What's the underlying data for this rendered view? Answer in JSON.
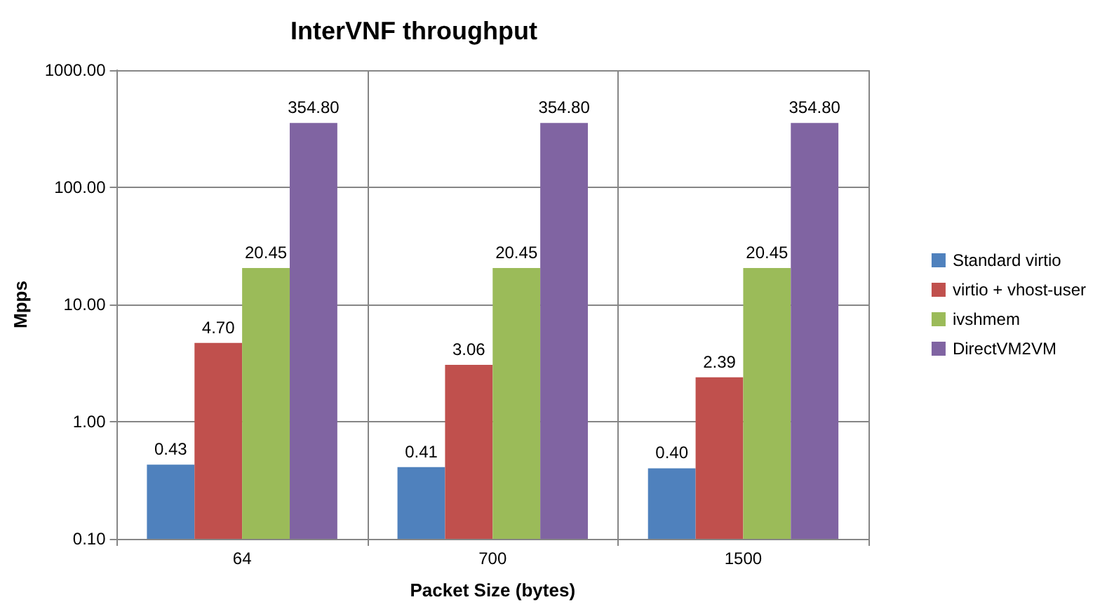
{
  "chart_data": {
    "type": "bar",
    "title": "InterVNF throughput",
    "xlabel": "Packet Size (bytes)",
    "ylabel": "Mpps",
    "categories": [
      "64",
      "700",
      "1500"
    ],
    "series": [
      {
        "name": "Standard virtio",
        "color": "#4f81bd",
        "values": [
          0.43,
          0.41,
          0.4
        ],
        "value_labels": [
          "0.43",
          "0.41",
          "0.40"
        ]
      },
      {
        "name": "virtio + vhost-user",
        "color": "#c0504d",
        "values": [
          4.7,
          3.06,
          2.39
        ],
        "value_labels": [
          "4.70",
          "3.06",
          "2.39"
        ]
      },
      {
        "name": "ivshmem",
        "color": "#9bbb59",
        "values": [
          20.45,
          20.45,
          20.45
        ],
        "value_labels": [
          "20.45",
          "20.45",
          "20.45"
        ]
      },
      {
        "name": "DirectVM2VM",
        "color": "#8064a2",
        "values": [
          354.8,
          354.8,
          354.8
        ],
        "value_labels": [
          "354.80",
          "354.80",
          "354.80"
        ]
      }
    ],
    "log": "y",
    "ylim": [
      0.1,
      1000
    ],
    "yticks": [
      {
        "value": 0.1,
        "label": "0.10"
      },
      {
        "value": 1,
        "label": "1.00"
      },
      {
        "value": 10,
        "label": "10.00"
      },
      {
        "value": 100,
        "label": "100.00"
      },
      {
        "value": 1000,
        "label": "1000.00"
      }
    ],
    "grid": true,
    "legend": "right"
  }
}
